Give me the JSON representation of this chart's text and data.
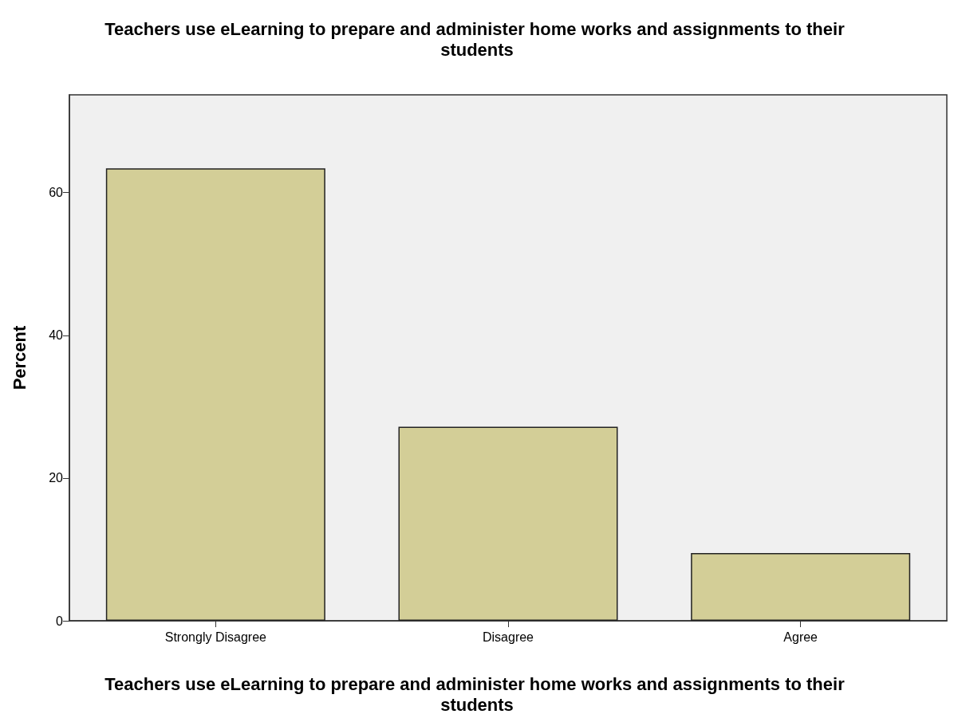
{
  "chart_data": {
    "type": "bar",
    "title": "Teachers use eLearning to prepare and administer home works and assignments to their students",
    "xlabel": "Teachers use eLearning to prepare and administer home works and assignments to their students",
    "ylabel": "Percent",
    "categories": [
      "Strongly Disagree",
      "Disagree",
      "Agree"
    ],
    "values": [
      63.4,
      27.2,
      9.5
    ],
    "color": "#d3ce97",
    "ylim": [
      0,
      73.7
    ],
    "yticks": [
      0,
      20,
      40,
      60
    ],
    "grid": false
  }
}
